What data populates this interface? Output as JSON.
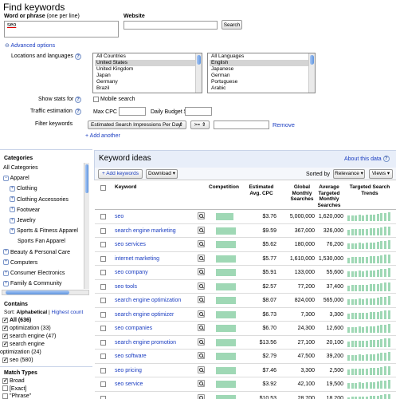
{
  "page_title": "Find keywords",
  "word_label": "Word or phrase",
  "word_hint": "(one per line)",
  "word_value": "seo",
  "website_label": "Website",
  "website_value": "",
  "search_button": "Search",
  "advanced_toggle": "⊖",
  "advanced_label": "Advanced options",
  "locations_label": "Locations and languages",
  "countries": [
    "All Countries",
    "United States",
    "United Kingdom",
    "Japan",
    "Germany",
    "Brazil"
  ],
  "countries_selected": 1,
  "languages": [
    "All Languages",
    "English",
    "Japanese",
    "German",
    "Portuguese",
    "Arabic"
  ],
  "languages_selected": 1,
  "show_stats_label": "Show stats for",
  "mobile_search_label": "Mobile search",
  "traffic_label": "Traffic estimation",
  "max_cpc_label": "Max CPC $",
  "daily_budget_label": "Daily Budget $",
  "filter_label": "Filter keywords",
  "filter_metric": "Estimated Search Impressions Per Day",
  "filter_op": ">=",
  "filter_remove": "Remove",
  "add_another": "+ Add another",
  "categories": {
    "title": "Categories",
    "items": [
      {
        "label": "All Categories",
        "indent": 0,
        "plus": false,
        "link": false
      },
      {
        "label": "Apparel",
        "indent": 0,
        "plus": true,
        "expanded": true,
        "link": false
      },
      {
        "label": "Clothing",
        "indent": 1,
        "plus": true,
        "link": false
      },
      {
        "label": "Clothing Accessories",
        "indent": 1,
        "plus": true,
        "link": false
      },
      {
        "label": "Footwear",
        "indent": 1,
        "plus": true,
        "link": false
      },
      {
        "label": "Jewelry",
        "indent": 1,
        "plus": true,
        "link": false
      },
      {
        "label": "Sports & Fitness Apparel",
        "indent": 1,
        "plus": true,
        "link": false
      },
      {
        "label": "Sports Fan Apparel",
        "indent": 1,
        "plus": false,
        "link": false
      },
      {
        "label": "Beauty & Personal Care",
        "indent": 0,
        "plus": true,
        "link": false
      },
      {
        "label": "Computers",
        "indent": 0,
        "plus": true,
        "link": false
      },
      {
        "label": "Consumer Electronics",
        "indent": 0,
        "plus": true,
        "link": false
      },
      {
        "label": "Family & Community",
        "indent": 0,
        "plus": true,
        "link": false
      }
    ]
  },
  "contains": {
    "title": "Contains",
    "sort_label": "Sort:",
    "sort_alpha": "Alphabetical",
    "sort_sep": "|",
    "sort_high": "Highest count",
    "items": [
      {
        "label": "All (636)",
        "checked": true,
        "bold": true
      },
      {
        "label": "optimization (33)",
        "checked": true,
        "bold": false
      },
      {
        "label": "search engine (47)",
        "checked": true,
        "bold": false
      },
      {
        "label": "search engine",
        "checked": true,
        "bold": false
      },
      {
        "label": "optimization (24)",
        "checked": null,
        "bold": false
      },
      {
        "label": "seo (580)",
        "checked": true,
        "bold": false
      }
    ]
  },
  "match_types": {
    "title": "Match Types",
    "items": [
      {
        "label": "Broad",
        "checked": true
      },
      {
        "label": "[Exact]",
        "checked": false
      },
      {
        "label": "\"Phrase\"",
        "checked": false
      }
    ]
  },
  "ideas": {
    "title": "Keyword ideas",
    "about_link": "About this data",
    "add_keywords": "+ Add keywords",
    "download": "Download ▾",
    "sorted_by": "Sorted by",
    "relevance": "Relevance ▾",
    "views": "Views ▾",
    "col_keyword": "Keyword",
    "col_competition": "Competition",
    "col_cpc": [
      "Estimated",
      "Avg. CPC"
    ],
    "col_global": [
      "Global",
      "Monthly",
      "Searches"
    ],
    "col_local": [
      "Average",
      "Targeted",
      "Monthly",
      "Searches"
    ],
    "col_trends": [
      "Targeted Search",
      "Trends"
    ],
    "rows": [
      {
        "keyword": "seo",
        "cpc": "$3.76",
        "global": "5,000,000",
        "local": "1,620,000",
        "competition": 0.6
      },
      {
        "keyword": "search engine marketing",
        "cpc": "$9.59",
        "global": "367,000",
        "local": "326,000",
        "competition": 0.7
      },
      {
        "keyword": "seo services",
        "cpc": "$5.62",
        "global": "180,000",
        "local": "76,200",
        "competition": 0.7
      },
      {
        "keyword": "internet marketing",
        "cpc": "$5.77",
        "global": "1,610,000",
        "local": "1,530,000",
        "competition": 0.7
      },
      {
        "keyword": "seo company",
        "cpc": "$5.91",
        "global": "133,000",
        "local": "55,600",
        "competition": 0.7
      },
      {
        "keyword": "seo tools",
        "cpc": "$2.57",
        "global": "77,200",
        "local": "37,400",
        "competition": 0.7
      },
      {
        "keyword": "search engine optimization",
        "cpc": "$8.07",
        "global": "824,000",
        "local": "565,000",
        "competition": 0.7
      },
      {
        "keyword": "search engine optimizer",
        "cpc": "$6.73",
        "global": "7,300",
        "local": "3,300",
        "competition": 0.7
      },
      {
        "keyword": "seo companies",
        "cpc": "$6.70",
        "global": "24,300",
        "local": "12,600",
        "competition": 0.7
      },
      {
        "keyword": "search engine promotion",
        "cpc": "$13.56",
        "global": "27,100",
        "local": "20,100",
        "competition": 0.7
      },
      {
        "keyword": "seo software",
        "cpc": "$2.79",
        "global": "47,500",
        "local": "39,200",
        "competition": 0.7
      },
      {
        "keyword": "seo pricing",
        "cpc": "$7.46",
        "global": "3,300",
        "local": "2,500",
        "competition": 0.7
      },
      {
        "keyword": "seo service",
        "cpc": "$3.92",
        "global": "42,100",
        "local": "19,500",
        "competition": 0.7
      },
      {
        "keyword": "",
        "cpc": "$10.53",
        "global": "28,700",
        "local": "18,200",
        "competition": 0.7
      }
    ]
  },
  "colors": {
    "link": "#1a3dc1",
    "bar": "#9fd8b5",
    "header_bg": "#e8eef9"
  }
}
